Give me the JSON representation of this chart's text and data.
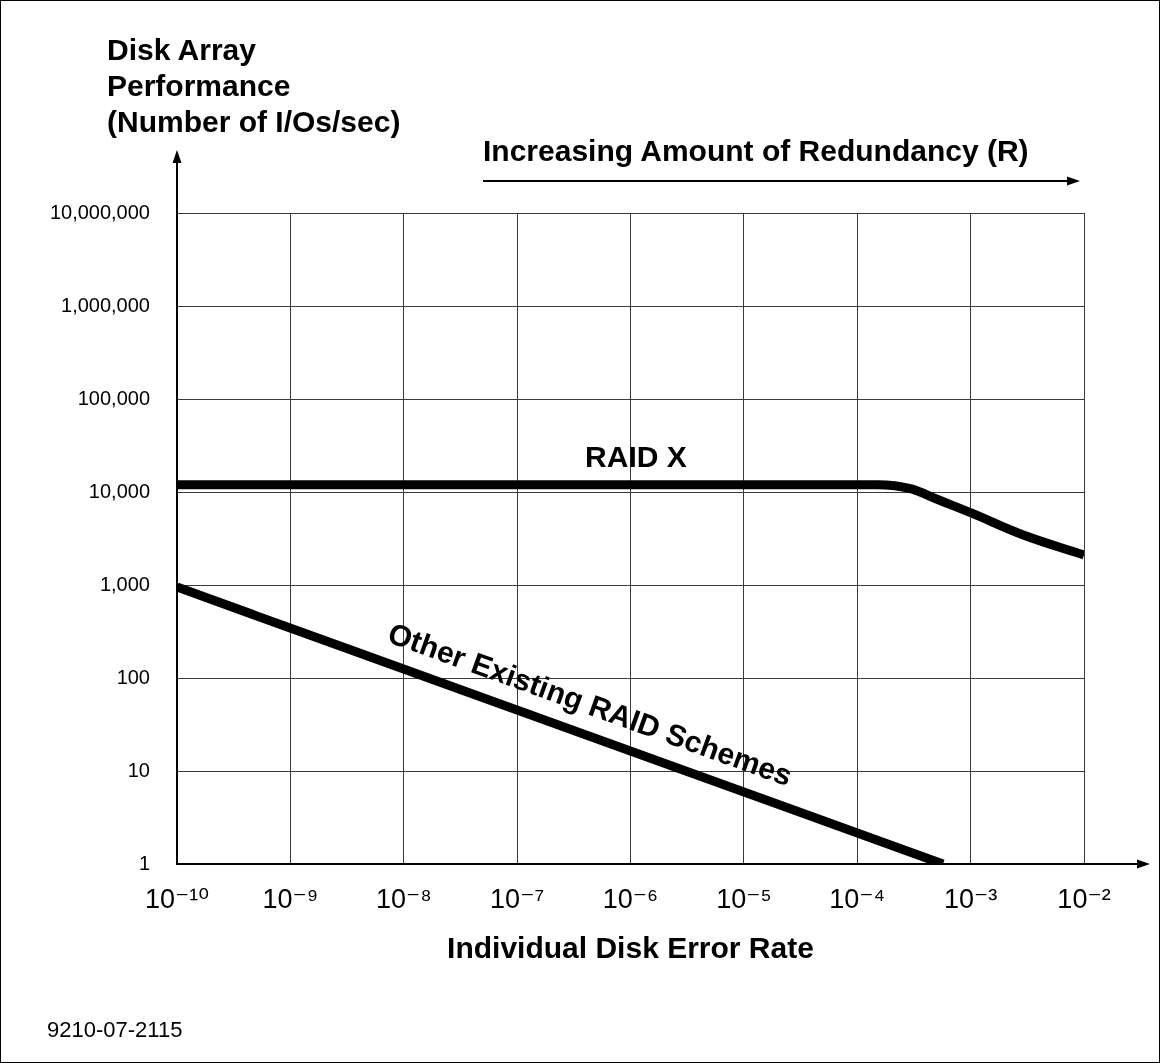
{
  "chart_data": {
    "type": "line",
    "ylabel": "Disk Array\nPerformance\n(Number of I/Os/sec)",
    "xlabel": "Individual Disk Error Rate",
    "annotations": [
      "Increasing Amount of Redundancy (R)",
      "9210-07-2115"
    ],
    "log": "xy",
    "xlim": [
      1e-10,
      0.01
    ],
    "xticks": [
      {
        "value": 1e-10,
        "label": "10⁻¹⁰"
      },
      {
        "value": 1e-09,
        "label": "10⁻⁹"
      },
      {
        "value": 1e-08,
        "label": "10⁻⁸"
      },
      {
        "value": 1e-07,
        "label": "10⁻⁷"
      },
      {
        "value": 1e-06,
        "label": "10⁻⁶"
      },
      {
        "value": 1e-05,
        "label": "10⁻⁵"
      },
      {
        "value": 0.0001,
        "label": "10⁻⁴"
      },
      {
        "value": 0.001,
        "label": "10⁻³"
      },
      {
        "value": 0.01,
        "label": "10⁻²"
      }
    ],
    "ylim": [
      1,
      10000000
    ],
    "yticks": [
      1,
      10,
      100,
      {
        "value": 1000,
        "label": "1,000"
      },
      {
        "value": 10000,
        "label": "10,000"
      },
      {
        "value": 100000,
        "label": "100,000"
      },
      {
        "value": 1000000,
        "label": "1,000,000"
      },
      {
        "value": 10000000,
        "label": "10,000,000"
      }
    ],
    "grid": true,
    "series": [
      {
        "name": "RAID X",
        "color": "#000000",
        "x": [
          1e-10,
          0.00015,
          0.0003,
          0.0005,
          0.001,
          0.003,
          0.01
        ],
        "values": [
          12000,
          12000,
          10800,
          8400,
          6000,
          3400,
          2100
        ]
      },
      {
        "name": "Other Existing RAID Schemes",
        "color": "#000000",
        "x": [
          1e-10,
          0.00057
        ],
        "values": [
          950,
          1
        ]
      }
    ]
  }
}
